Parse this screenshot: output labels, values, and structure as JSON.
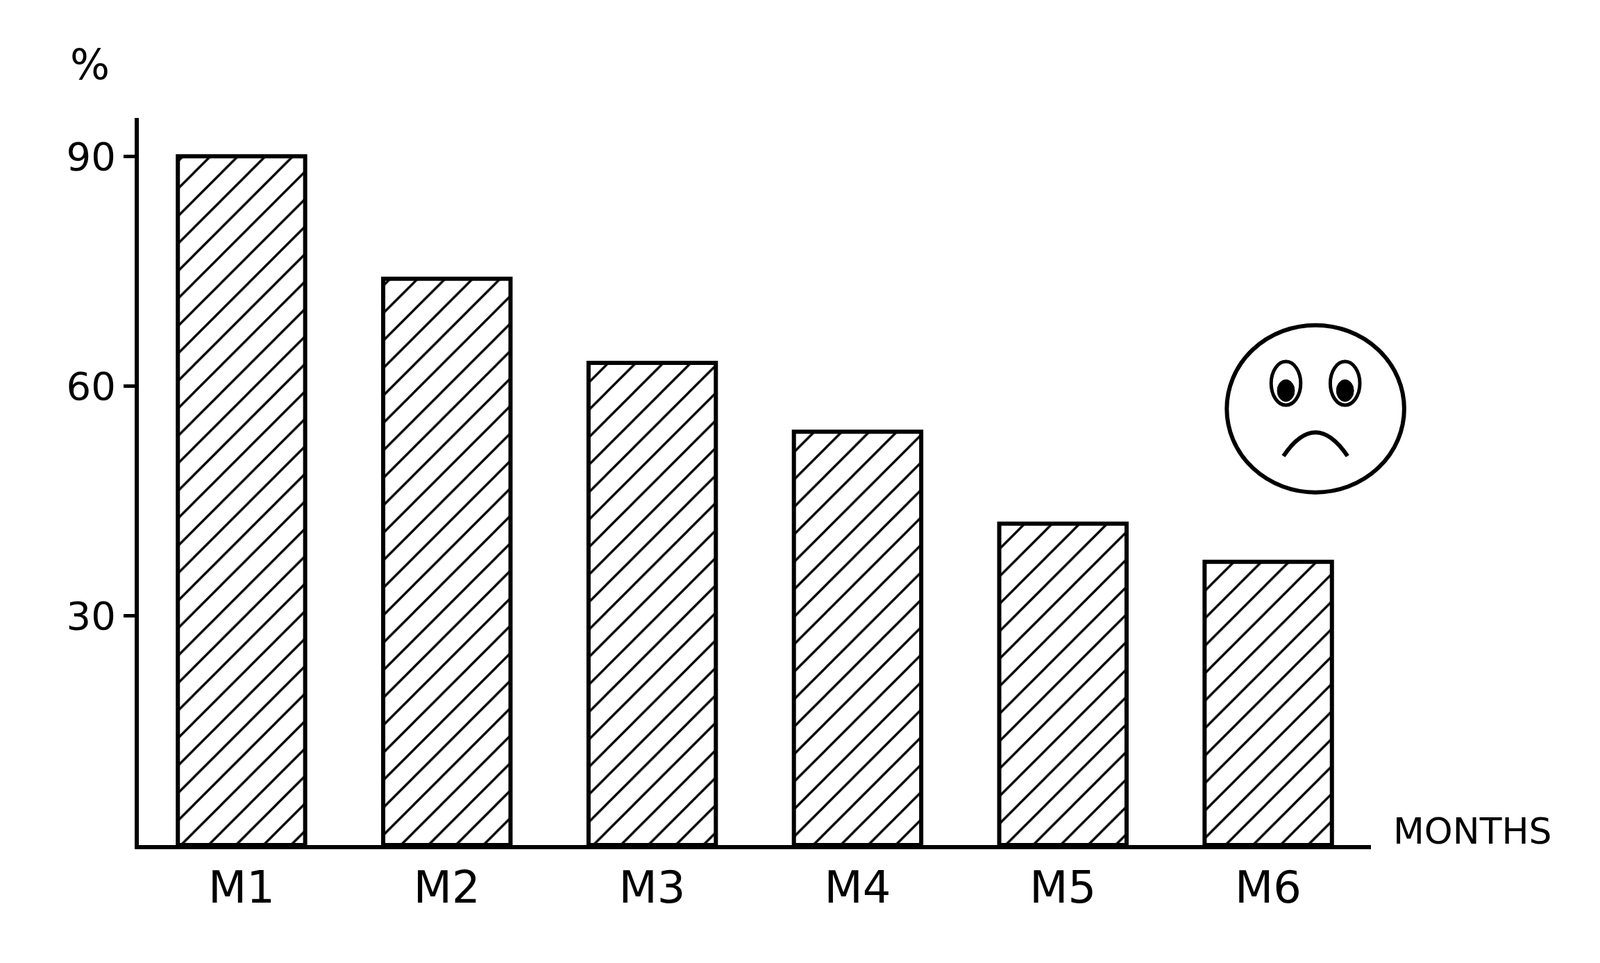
{
  "chart_data": {
    "type": "bar",
    "categories": [
      "M1",
      "M2",
      "M3",
      "M4",
      "M5",
      "M6"
    ],
    "values": [
      90,
      74,
      63,
      54,
      42,
      37
    ],
    "color": "#000000",
    "x_label": "MONTHS",
    "y_label": "%",
    "ylim": [
      0,
      95
    ],
    "yticks": [
      30,
      60,
      90
    ],
    "grid": false
  }
}
